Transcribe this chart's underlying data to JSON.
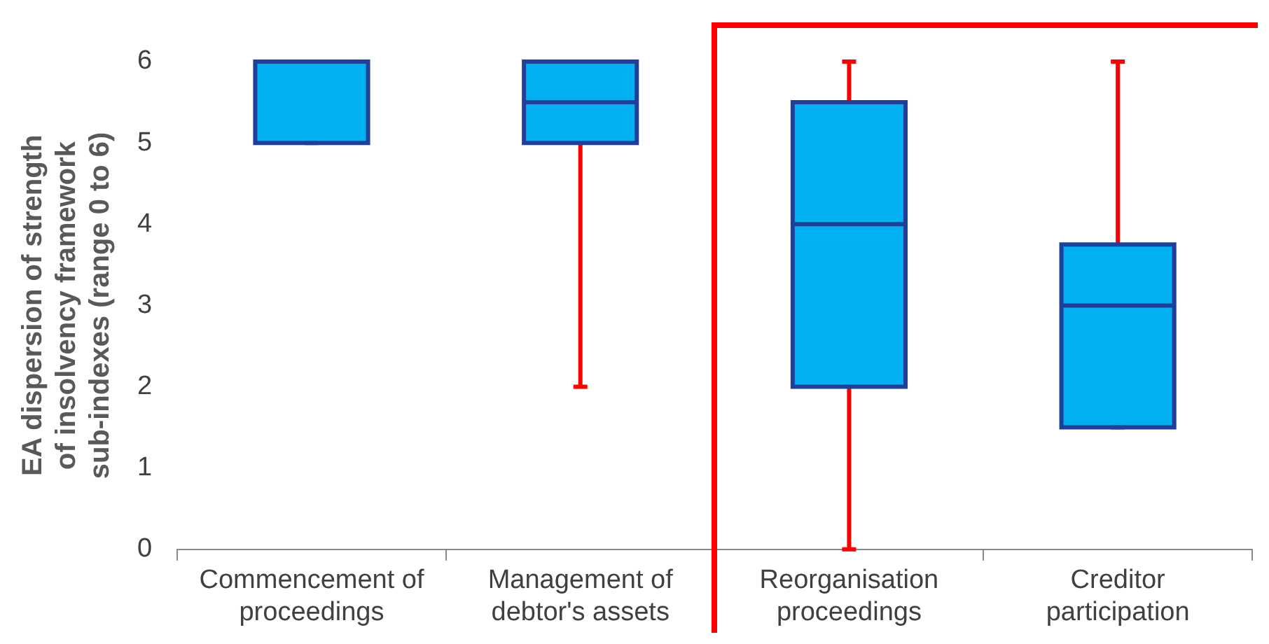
{
  "chart_data": {
    "type": "box",
    "ylabel": "EA dispersion of strength of insolvency framework sub-indexes (range 0 to 6)",
    "categories": [
      "Commencement of proceedings",
      "Management of debtor's assets",
      "Reorganisation proceedings",
      "Creditor participation"
    ],
    "series": [
      {
        "color": "#00b0f0",
        "boxes": [
          {
            "low": 5,
            "q1": 5,
            "median": 6,
            "q3": 6,
            "high": 6
          },
          {
            "low": 2,
            "q1": 5,
            "median": 5.5,
            "q3": 6,
            "high": 6
          },
          {
            "low": 0,
            "q1": 2,
            "median": 4,
            "q3": 5.5,
            "high": 6
          },
          {
            "low": 1.5,
            "q1": 1.5,
            "median": 3,
            "q3": 3.75,
            "high": 6
          }
        ]
      }
    ],
    "ylim": [
      0,
      6
    ],
    "yticks": [
      0,
      1,
      2,
      3,
      4,
      5,
      6
    ],
    "grid": false,
    "legend": false
  }
}
